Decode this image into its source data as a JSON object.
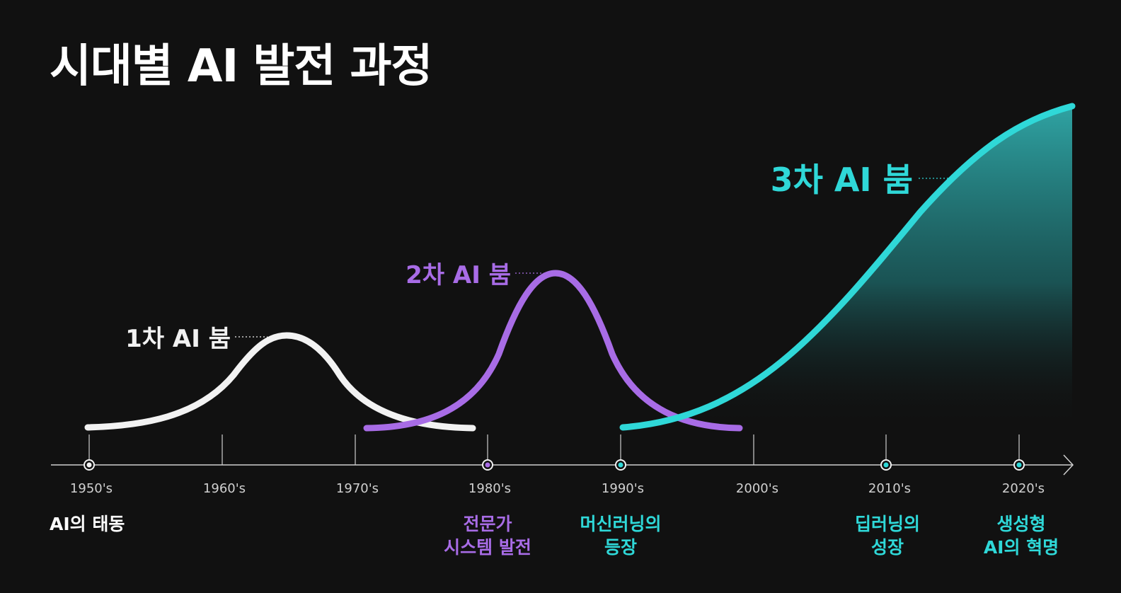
{
  "title": "시대별 AI 발전 과정",
  "colors": {
    "background": "#111111",
    "first": "#f2f2f2",
    "second": "#a86ce6",
    "third": "#2fd8d8"
  },
  "timeline": {
    "decades": [
      "1950's",
      "1960's",
      "1970's",
      "1980's",
      "1990's",
      "2000's",
      "2010's",
      "2020's"
    ]
  },
  "booms": [
    {
      "label": "1차 AI 붐",
      "color": "#f2f2f2"
    },
    {
      "label": "2차 AI 붐",
      "color": "#a86ce6"
    },
    {
      "label": "3차 AI 붐",
      "color": "#2fd8d8"
    }
  ],
  "milestones": [
    {
      "decade": "1950's",
      "lines": [
        "AI의 태동"
      ],
      "color": "#ffffff"
    },
    {
      "decade": "1980's",
      "lines": [
        "전문가",
        "시스템 발전"
      ],
      "color": "#a86ce6"
    },
    {
      "decade": "1990's",
      "lines": [
        "머신러닝의",
        "등장"
      ],
      "color": "#2fd8d8"
    },
    {
      "decade": "2010's",
      "lines": [
        "딥러닝의",
        "성장"
      ],
      "color": "#2fd8d8"
    },
    {
      "decade": "2020's",
      "lines": [
        "생성형",
        "AI의 혁명"
      ],
      "color": "#2fd8d8"
    }
  ]
}
